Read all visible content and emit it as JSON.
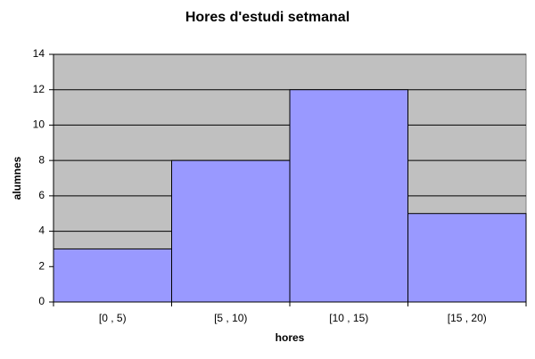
{
  "chart_data": {
    "type": "bar",
    "title": "Hores d'estudi setmanal",
    "x_label": "hores",
    "y_label": "alumnes",
    "categories": [
      "[0 , 5)",
      "[5 , 10)",
      "[10 , 15)",
      "[15 , 20)"
    ],
    "values": [
      3,
      8,
      12,
      5
    ],
    "color": "#9999ff",
    "ylim": [
      0,
      14
    ],
    "yticks": [
      0,
      2,
      4,
      6,
      8,
      10,
      12,
      14
    ],
    "grid": true,
    "plot_background": "#c0c0c0"
  }
}
